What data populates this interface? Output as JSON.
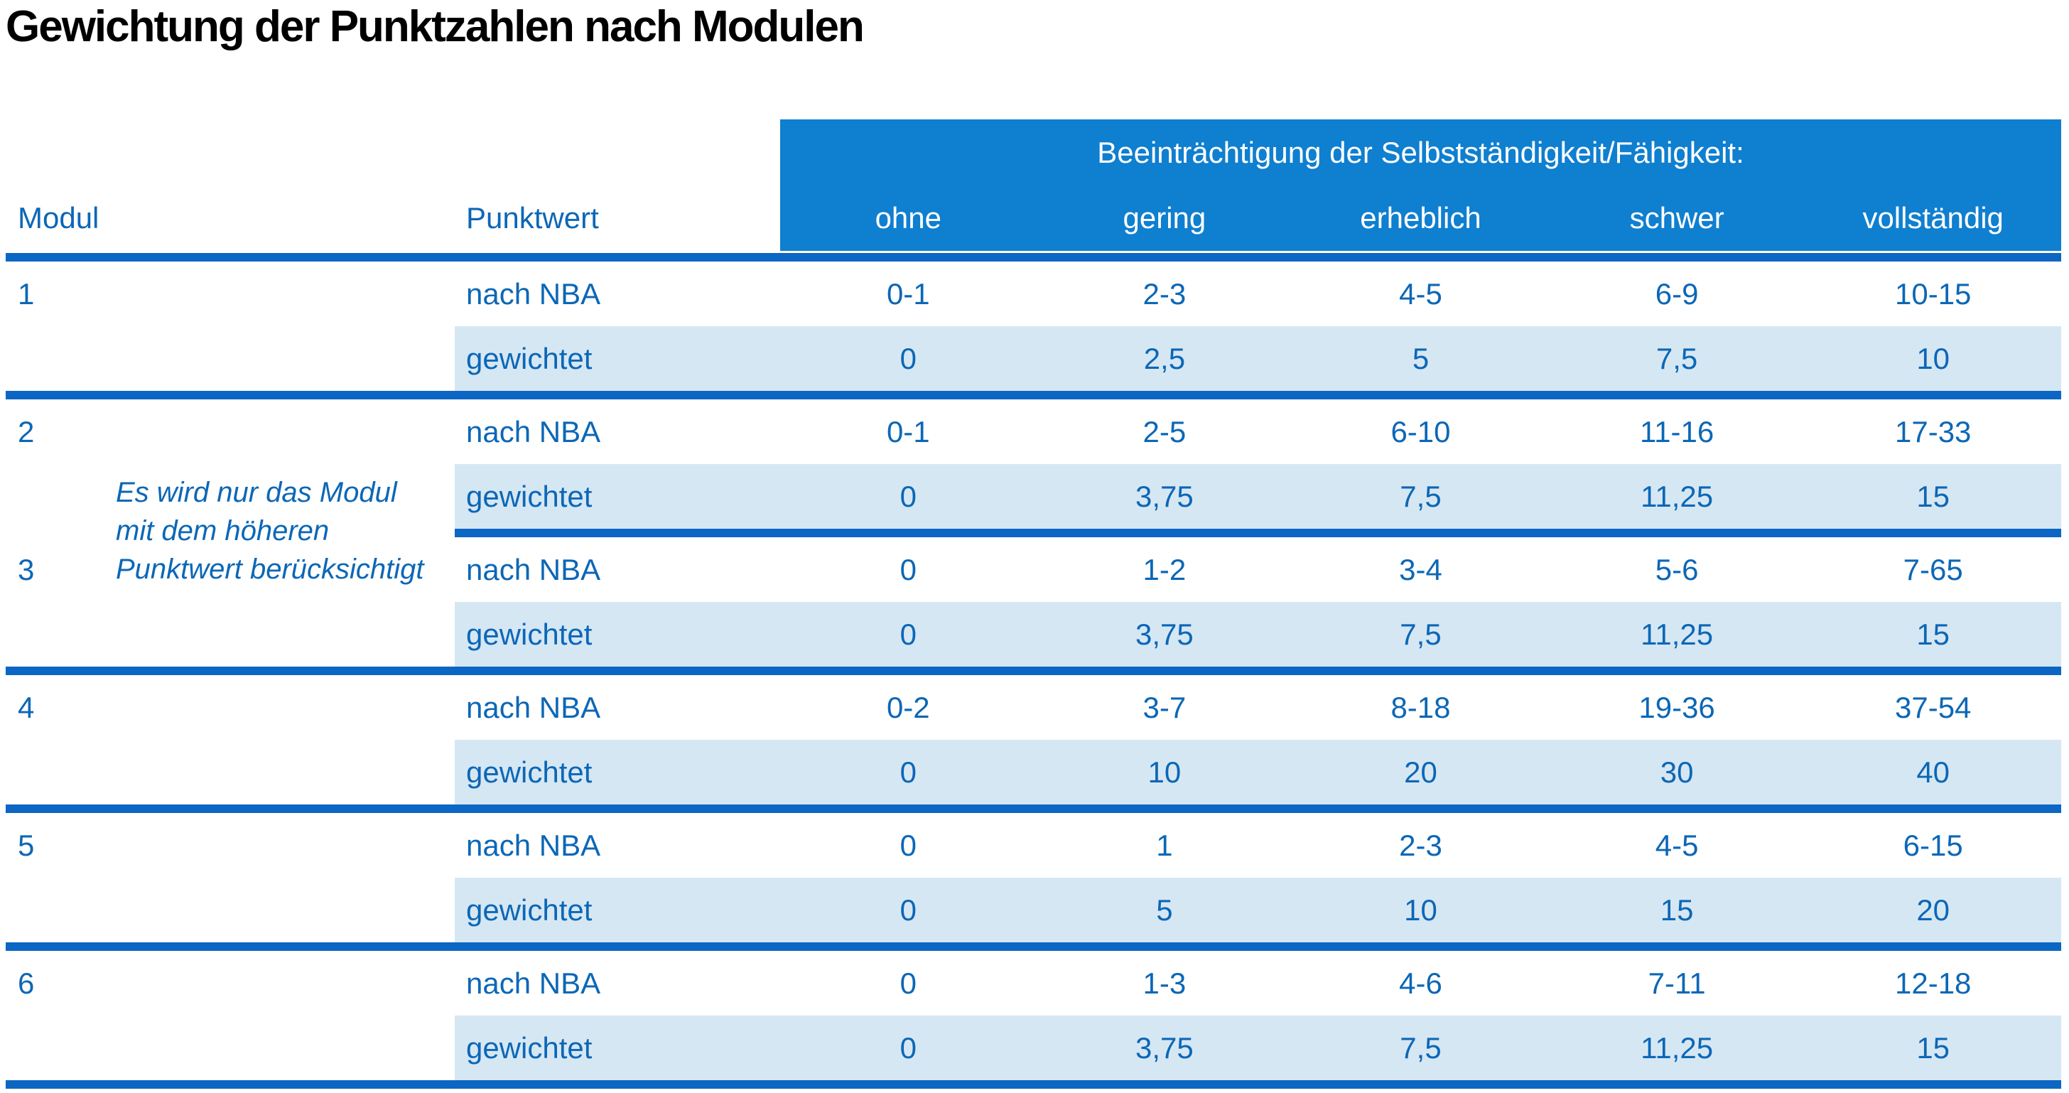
{
  "title": "Gewichtung der Punktzahlen nach Modulen",
  "colors": {
    "header_blue": "#0f7fd0",
    "separator_blue": "#0c66c3",
    "text_blue": "#0c67b6",
    "row_light_blue": "#d6e7f4",
    "title_black": "#000000",
    "header_text_white": "#ffffff"
  },
  "table": {
    "corner": {
      "modul": "Modul",
      "punktwert": "Punktwert"
    },
    "group_header": "Beeinträchtigung der Selbstständigkeit/Fähigkeit:",
    "severity_columns": [
      "ohne",
      "gering",
      "erheblich",
      "schwer",
      "vollständig"
    ],
    "note_lines": [
      "Es wird nur das Modul",
      "mit dem höheren",
      "Punktwert berücksichtigt"
    ],
    "modules": [
      {
        "number": "1",
        "rows": [
          {
            "label": "nach NBA",
            "values": [
              "0-1",
              "2-3",
              "4-5",
              "6-9",
              "10-15"
            ]
          },
          {
            "label": "gewichtet",
            "values": [
              "0",
              "2,5",
              "5",
              "7,5",
              "10"
            ]
          }
        ]
      },
      {
        "number": "2",
        "rows": [
          {
            "label": "nach NBA",
            "values": [
              "0-1",
              "2-5",
              "6-10",
              "11-16",
              "17-33"
            ]
          },
          {
            "label": "gewichtet",
            "values": [
              "0",
              "3,75",
              "7,5",
              "11,25",
              "15"
            ]
          }
        ]
      },
      {
        "number": "3",
        "rows": [
          {
            "label": "nach NBA",
            "values": [
              "0",
              "1-2",
              "3-4",
              "5-6",
              "7-65"
            ]
          },
          {
            "label": "gewichtet",
            "values": [
              "0",
              "3,75",
              "7,5",
              "11,25",
              "15"
            ]
          }
        ]
      },
      {
        "number": "4",
        "rows": [
          {
            "label": "nach NBA",
            "values": [
              "0-2",
              "3-7",
              "8-18",
              "19-36",
              "37-54"
            ]
          },
          {
            "label": "gewichtet",
            "values": [
              "0",
              "10",
              "20",
              "30",
              "40"
            ]
          }
        ]
      },
      {
        "number": "5",
        "rows": [
          {
            "label": "nach NBA",
            "values": [
              "0",
              "1",
              "2-3",
              "4-5",
              "6-15"
            ]
          },
          {
            "label": "gewichtet",
            "values": [
              "0",
              "5",
              "10",
              "15",
              "20"
            ]
          }
        ]
      },
      {
        "number": "6",
        "rows": [
          {
            "label": "nach NBA",
            "values": [
              "0",
              "1-3",
              "4-6",
              "7-11",
              "12-18"
            ]
          },
          {
            "label": "gewichtet",
            "values": [
              "0",
              "3,75",
              "7,5",
              "11,25",
              "15"
            ]
          }
        ]
      }
    ]
  }
}
